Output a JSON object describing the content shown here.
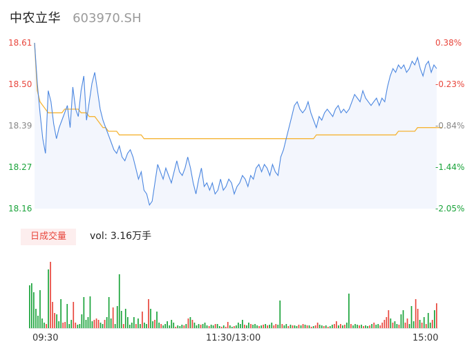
{
  "header": {
    "name": "中农立华",
    "code": "603970.SH"
  },
  "colors": {
    "up": "#e8463c",
    "down": "#1aa33a",
    "neutral": "#888888",
    "price_line": "#4a86e0",
    "avg_line": "#f5b434",
    "fill": "#f3f6fd"
  },
  "volume_panel": {
    "tab_label": "日成交量",
    "vol_text": "vol: 3.16万手"
  },
  "chart_data": {
    "type": "line",
    "title": "",
    "y_left_ticks": [
      "18.61",
      "18.50",
      "18.39",
      "18.27",
      "18.16"
    ],
    "y_right_ticks": [
      "0.38%",
      "-0.23%",
      "-0.84%",
      "-1.44%",
      "-2.05%"
    ],
    "ylim": [
      18.16,
      18.61
    ],
    "prev_close": 18.54,
    "x_ticks": [
      "09:30",
      "11:30/13:00",
      "15:00"
    ],
    "price": [
      18.61,
      18.5,
      18.42,
      18.35,
      18.31,
      18.48,
      18.45,
      18.39,
      18.35,
      18.38,
      18.4,
      18.42,
      18.44,
      18.38,
      18.49,
      18.43,
      18.41,
      18.48,
      18.52,
      18.4,
      18.45,
      18.5,
      18.53,
      18.48,
      18.43,
      18.4,
      18.38,
      18.36,
      18.34,
      18.32,
      18.31,
      18.33,
      18.3,
      18.29,
      18.31,
      18.32,
      18.3,
      18.27,
      18.24,
      18.26,
      18.21,
      18.2,
      18.17,
      18.18,
      18.23,
      18.28,
      18.26,
      18.24,
      18.27,
      18.25,
      18.23,
      18.26,
      18.29,
      18.26,
      18.25,
      18.27,
      18.3,
      18.27,
      18.23,
      18.2,
      18.24,
      18.27,
      18.22,
      18.23,
      18.21,
      18.23,
      18.2,
      18.21,
      18.24,
      18.21,
      18.22,
      18.24,
      18.23,
      18.2,
      18.22,
      18.23,
      18.25,
      18.24,
      18.22,
      18.25,
      18.24,
      18.27,
      18.28,
      18.26,
      18.28,
      18.27,
      18.25,
      18.28,
      18.26,
      18.25,
      18.3,
      18.32,
      18.35,
      18.38,
      18.41,
      18.44,
      18.45,
      18.43,
      18.42,
      18.43,
      18.45,
      18.42,
      18.4,
      18.38,
      18.41,
      18.4,
      18.42,
      18.43,
      18.42,
      18.41,
      18.43,
      18.44,
      18.42,
      18.43,
      18.42,
      18.43,
      18.45,
      18.47,
      18.46,
      18.45,
      18.48,
      18.46,
      18.45,
      18.44,
      18.45,
      18.46,
      18.44,
      18.46,
      18.45,
      18.49,
      18.52,
      18.54,
      18.53,
      18.55,
      18.54,
      18.55,
      18.53,
      18.54,
      18.56,
      18.55,
      18.57,
      18.54,
      18.52,
      18.55,
      18.56,
      18.53,
      18.55,
      18.54
    ],
    "avg": [
      18.61,
      18.48,
      18.45,
      18.44,
      18.43,
      18.42,
      18.42,
      18.42,
      18.42,
      18.42,
      18.42,
      18.43,
      18.43,
      18.43,
      18.43,
      18.43,
      18.43,
      18.42,
      18.42,
      18.42,
      18.41,
      18.41,
      18.41,
      18.4,
      18.39,
      18.38,
      18.38,
      18.37,
      18.37,
      18.37,
      18.37,
      18.36,
      18.36,
      18.36,
      18.36,
      18.36,
      18.36,
      18.36,
      18.36,
      18.36,
      18.35,
      18.35,
      18.35,
      18.35,
      18.35,
      18.35,
      18.35,
      18.35,
      18.35,
      18.35,
      18.35,
      18.35,
      18.35,
      18.35,
      18.35,
      18.35,
      18.35,
      18.35,
      18.35,
      18.35,
      18.35,
      18.35,
      18.35,
      18.35,
      18.35,
      18.35,
      18.35,
      18.35,
      18.35,
      18.35,
      18.35,
      18.35,
      18.35,
      18.35,
      18.35,
      18.35,
      18.35,
      18.35,
      18.35,
      18.35,
      18.35,
      18.35,
      18.35,
      18.35,
      18.35,
      18.35,
      18.35,
      18.35,
      18.35,
      18.35,
      18.35,
      18.35,
      18.35,
      18.35,
      18.35,
      18.35,
      18.35,
      18.35,
      18.35,
      18.35,
      18.35,
      18.35,
      18.35,
      18.36,
      18.36,
      18.36,
      18.36,
      18.36,
      18.36,
      18.36,
      18.36,
      18.36,
      18.36,
      18.36,
      18.36,
      18.36,
      18.36,
      18.36,
      18.36,
      18.36,
      18.36,
      18.36,
      18.36,
      18.36,
      18.36,
      18.36,
      18.36,
      18.36,
      18.36,
      18.36,
      18.36,
      18.36,
      18.36,
      18.37,
      18.37,
      18.37,
      18.37,
      18.37,
      18.37,
      18.37,
      18.38,
      18.38,
      18.38,
      18.38,
      18.38,
      18.38,
      18.38,
      18.38,
      18.38,
      18.38
    ],
    "volume": [
      [
        62,
        1
      ],
      [
        65,
        1
      ],
      [
        52,
        1
      ],
      [
        28,
        1
      ],
      [
        18,
        1
      ],
      [
        55,
        1
      ],
      [
        14,
        1
      ],
      [
        8,
        1
      ],
      [
        6,
        0
      ],
      [
        85,
        1
      ],
      [
        96,
        0
      ],
      [
        38,
        0
      ],
      [
        22,
        0
      ],
      [
        20,
        1
      ],
      [
        10,
        1
      ],
      [
        42,
        1
      ],
      [
        8,
        0
      ],
      [
        9,
        0
      ],
      [
        35,
        1
      ],
      [
        6,
        1
      ],
      [
        12,
        1
      ],
      [
        38,
        0
      ],
      [
        8,
        0
      ],
      [
        5,
        1
      ],
      [
        6,
        1
      ],
      [
        20,
        1
      ],
      [
        45,
        1
      ],
      [
        12,
        1
      ],
      [
        16,
        1
      ],
      [
        46,
        1
      ],
      [
        10,
        1
      ],
      [
        12,
        0
      ],
      [
        14,
        0
      ],
      [
        12,
        0
      ],
      [
        8,
        1
      ],
      [
        6,
        1
      ],
      [
        12,
        0
      ],
      [
        16,
        1
      ],
      [
        45,
        1
      ],
      [
        14,
        1
      ],
      [
        30,
        0
      ],
      [
        6,
        1
      ],
      [
        32,
        1
      ],
      [
        78,
        1
      ],
      [
        25,
        1
      ],
      [
        6,
        0
      ],
      [
        28,
        1
      ],
      [
        16,
        1
      ],
      [
        5,
        1
      ],
      [
        8,
        1
      ],
      [
        16,
        1
      ],
      [
        6,
        0
      ],
      [
        14,
        1
      ],
      [
        6,
        1
      ],
      [
        24,
        0
      ],
      [
        8,
        1
      ],
      [
        6,
        1
      ],
      [
        42,
        0
      ],
      [
        28,
        1
      ],
      [
        10,
        1
      ],
      [
        12,
        0
      ],
      [
        24,
        1
      ],
      [
        8,
        1
      ],
      [
        6,
        0
      ],
      [
        4,
        1
      ],
      [
        6,
        1
      ],
      [
        10,
        1
      ],
      [
        4,
        1
      ],
      [
        12,
        1
      ],
      [
        8,
        1
      ],
      [
        2,
        0
      ],
      [
        4,
        1
      ],
      [
        3,
        1
      ],
      [
        5,
        1
      ],
      [
        4,
        0
      ],
      [
        6,
        1
      ],
      [
        14,
        0
      ],
      [
        16,
        1
      ],
      [
        12,
        0
      ],
      [
        8,
        1
      ],
      [
        4,
        1
      ],
      [
        6,
        1
      ],
      [
        5,
        0
      ],
      [
        6,
        1
      ],
      [
        8,
        1
      ],
      [
        4,
        1
      ],
      [
        3,
        0
      ],
      [
        5,
        1
      ],
      [
        4,
        1
      ],
      [
        6,
        0
      ],
      [
        6,
        1
      ],
      [
        3,
        1
      ],
      [
        2,
        0
      ],
      [
        4,
        1
      ],
      [
        2,
        0
      ],
      [
        9,
        0
      ],
      [
        4,
        1
      ],
      [
        2,
        1
      ],
      [
        3,
        0
      ],
      [
        4,
        1
      ],
      [
        8,
        1
      ],
      [
        6,
        1
      ],
      [
        12,
        1
      ],
      [
        5,
        0
      ],
      [
        4,
        1
      ],
      [
        8,
        1
      ],
      [
        6,
        0
      ],
      [
        5,
        1
      ],
      [
        6,
        1
      ],
      [
        4,
        1
      ],
      [
        3,
        0
      ],
      [
        4,
        1
      ],
      [
        5,
        0
      ],
      [
        6,
        1
      ],
      [
        4,
        0
      ],
      [
        5,
        1
      ],
      [
        8,
        1
      ],
      [
        4,
        0
      ],
      [
        6,
        0
      ],
      [
        5,
        1
      ],
      [
        40,
        1
      ],
      [
        6,
        0
      ],
      [
        4,
        1
      ],
      [
        6,
        1
      ],
      [
        3,
        0
      ],
      [
        5,
        1
      ],
      [
        4,
        0
      ],
      [
        4,
        1
      ],
      [
        3,
        1
      ],
      [
        5,
        0
      ],
      [
        4,
        1
      ],
      [
        6,
        0
      ],
      [
        5,
        1
      ],
      [
        4,
        0
      ],
      [
        4,
        1
      ],
      [
        2,
        0
      ],
      [
        3,
        1
      ],
      [
        4,
        0
      ],
      [
        8,
        0
      ],
      [
        5,
        1
      ],
      [
        4,
        1
      ],
      [
        3,
        0
      ],
      [
        4,
        1
      ],
      [
        2,
        0
      ],
      [
        3,
        1
      ],
      [
        5,
        1
      ],
      [
        6,
        0
      ],
      [
        10,
        0
      ],
      [
        4,
        1
      ],
      [
        6,
        0
      ],
      [
        4,
        1
      ],
      [
        5,
        0
      ],
      [
        8,
        1
      ],
      [
        50,
        1
      ],
      [
        6,
        0
      ],
      [
        4,
        1
      ],
      [
        6,
        1
      ],
      [
        5,
        1
      ],
      [
        4,
        0
      ],
      [
        5,
        1
      ],
      [
        3,
        0
      ],
      [
        4,
        1
      ],
      [
        3,
        1
      ],
      [
        4,
        0
      ],
      [
        6,
        1
      ],
      [
        8,
        0
      ],
      [
        5,
        1
      ],
      [
        6,
        1
      ],
      [
        4,
        0
      ],
      [
        8,
        0
      ],
      [
        12,
        0
      ],
      [
        16,
        0
      ],
      [
        26,
        0
      ],
      [
        14,
        1
      ],
      [
        8,
        0
      ],
      [
        10,
        1
      ],
      [
        6,
        1
      ],
      [
        5,
        0
      ],
      [
        20,
        1
      ],
      [
        26,
        1
      ],
      [
        8,
        0
      ],
      [
        14,
        0
      ],
      [
        6,
        1
      ],
      [
        32,
        1
      ],
      [
        10,
        1
      ],
      [
        42,
        0
      ],
      [
        28,
        0
      ],
      [
        12,
        1
      ],
      [
        8,
        0
      ],
      [
        16,
        1
      ],
      [
        6,
        0
      ],
      [
        22,
        1
      ],
      [
        8,
        1
      ],
      [
        12,
        0
      ],
      [
        26,
        1
      ],
      [
        36,
        0
      ]
    ]
  }
}
